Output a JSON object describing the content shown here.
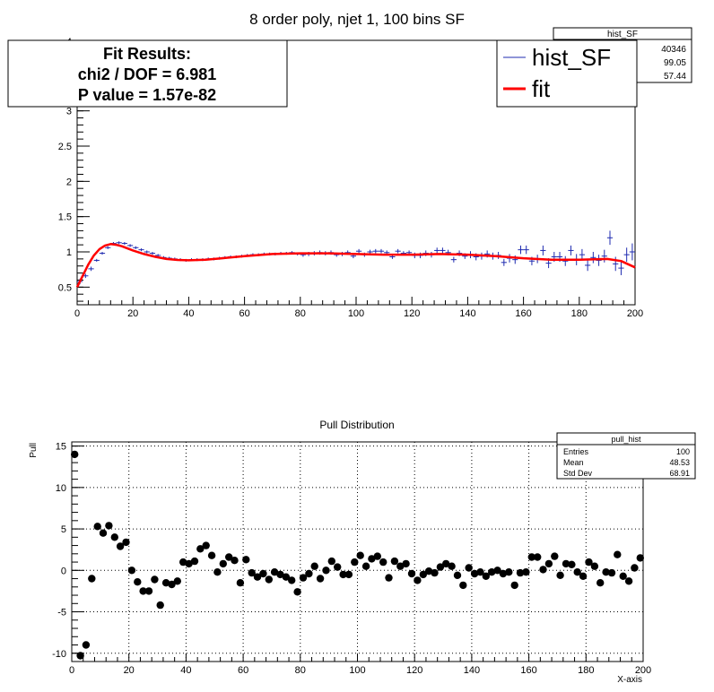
{
  "chart_data": [
    {
      "type": "scatter",
      "title": "8 order poly, njet 1, 100 bins SF",
      "xlim": [
        0,
        200
      ],
      "ylim": [
        0.25,
        4.0
      ],
      "x_ticks": [
        "0",
        "20",
        "40",
        "60",
        "80",
        "100",
        "120",
        "140",
        "160",
        "180",
        "200"
      ],
      "x_tick_values": [
        0,
        20,
        40,
        60,
        80,
        100,
        120,
        140,
        160,
        180,
        200
      ],
      "y_ticks": [
        "0.5",
        "1",
        "1.5",
        "2",
        "2.5",
        "3"
      ],
      "y_tick_values": [
        0.5,
        1,
        1.5,
        2,
        2.5,
        3
      ],
      "y_tick_partial": "4",
      "grid": false,
      "fit_box": {
        "heading": "Fit Results:",
        "chi2_line": "chi2 / DOF = 6.981",
        "pvalue_line": "P value = 1.57e-82"
      },
      "legend": {
        "placement": "top-right",
        "entries": [
          {
            "label": "hist_SF",
            "color": "#1f2bb0"
          },
          {
            "label": "fit",
            "color": "#ff0000"
          }
        ]
      },
      "stats_box": {
        "title": "hist_SF",
        "values": [
          "40346",
          "99.05",
          "57.44"
        ]
      },
      "series": [
        {
          "name": "hist_SF",
          "color": "#1f2bb0",
          "kind": "errorbar",
          "x": [
            1,
            3,
            5,
            7,
            9,
            11,
            13,
            15,
            17,
            19,
            21,
            23,
            25,
            27,
            29,
            31,
            33,
            35,
            37,
            39,
            41,
            43,
            45,
            47,
            49,
            51,
            53,
            55,
            57,
            59,
            61,
            63,
            65,
            67,
            69,
            71,
            73,
            75,
            77,
            79,
            81,
            83,
            85,
            87,
            89,
            91,
            93,
            95,
            97,
            99,
            101,
            103,
            105,
            107,
            109,
            111,
            113,
            115,
            117,
            119,
            121,
            123,
            125,
            127,
            129,
            131,
            133,
            135,
            137,
            139,
            141,
            143,
            145,
            147,
            149,
            151,
            153,
            155,
            157,
            159,
            161,
            163,
            165,
            167,
            169,
            171,
            173,
            175,
            177,
            179,
            181,
            183,
            185,
            187,
            189,
            191,
            193,
            195,
            197,
            199
          ],
          "y": [
            0.58,
            0.66,
            0.76,
            0.88,
            0.98,
            1.06,
            1.12,
            1.13,
            1.12,
            1.09,
            1.06,
            1.03,
            1.0,
            0.98,
            0.95,
            0.92,
            0.91,
            0.9,
            0.89,
            0.88,
            0.89,
            0.89,
            0.89,
            0.9,
            0.9,
            0.91,
            0.92,
            0.93,
            0.93,
            0.94,
            0.95,
            0.96,
            0.96,
            0.97,
            0.97,
            0.97,
            0.98,
            0.98,
            0.99,
            0.97,
            0.96,
            0.97,
            0.98,
            0.99,
            0.98,
            0.99,
            0.96,
            0.97,
            0.99,
            0.94,
            1.01,
            0.96,
            1.0,
            1.01,
            1.01,
            0.99,
            0.93,
            1.01,
            0.98,
            0.99,
            0.95,
            0.95,
            0.98,
            0.96,
            1.02,
            1.02,
            0.99,
            0.89,
            0.98,
            0.94,
            0.96,
            0.93,
            0.94,
            0.97,
            0.94,
            0.95,
            0.85,
            0.91,
            0.89,
            1.03,
            1.03,
            0.87,
            0.9,
            1.02,
            0.84,
            0.93,
            0.93,
            0.87,
            1.02,
            0.89,
            0.96,
            0.81,
            0.92,
            0.88,
            0.94,
            1.2,
            0.83,
            0.77,
            0.96,
            1.0
          ],
          "yerr": [
            0.04,
            0.03,
            0.03,
            0.02,
            0.02,
            0.02,
            0.02,
            0.02,
            0.02,
            0.02,
            0.02,
            0.02,
            0.02,
            0.02,
            0.02,
            0.02,
            0.02,
            0.02,
            0.02,
            0.02,
            0.02,
            0.02,
            0.02,
            0.02,
            0.02,
            0.02,
            0.02,
            0.02,
            0.02,
            0.02,
            0.02,
            0.02,
            0.02,
            0.02,
            0.02,
            0.02,
            0.02,
            0.02,
            0.02,
            0.02,
            0.03,
            0.03,
            0.03,
            0.03,
            0.03,
            0.03,
            0.03,
            0.03,
            0.03,
            0.03,
            0.03,
            0.03,
            0.03,
            0.03,
            0.03,
            0.03,
            0.03,
            0.03,
            0.03,
            0.03,
            0.04,
            0.04,
            0.04,
            0.04,
            0.04,
            0.04,
            0.04,
            0.04,
            0.04,
            0.04,
            0.05,
            0.05,
            0.05,
            0.05,
            0.05,
            0.05,
            0.05,
            0.06,
            0.06,
            0.06,
            0.06,
            0.06,
            0.06,
            0.07,
            0.07,
            0.07,
            0.07,
            0.07,
            0.07,
            0.08,
            0.08,
            0.08,
            0.08,
            0.08,
            0.09,
            0.1,
            0.1,
            0.1,
            0.1,
            0.12
          ]
        },
        {
          "name": "fit",
          "color": "#ff0000",
          "kind": "line",
          "x": [
            0,
            2,
            4,
            6,
            8,
            10,
            12,
            14,
            16,
            18,
            20,
            24,
            28,
            32,
            36,
            40,
            46,
            52,
            60,
            70,
            80,
            90,
            100,
            110,
            120,
            130,
            140,
            150,
            160,
            170,
            180,
            190,
            195,
            200
          ],
          "y": [
            0.5,
            0.66,
            0.82,
            0.95,
            1.04,
            1.09,
            1.11,
            1.1,
            1.08,
            1.05,
            1.02,
            0.97,
            0.93,
            0.9,
            0.885,
            0.88,
            0.89,
            0.91,
            0.94,
            0.97,
            0.98,
            0.98,
            0.97,
            0.96,
            0.96,
            0.97,
            0.96,
            0.94,
            0.91,
            0.89,
            0.89,
            0.9,
            0.87,
            0.78
          ]
        }
      ]
    },
    {
      "type": "scatter",
      "title": "Pull Distribution",
      "xlabel": "X-axis",
      "ylabel": "Pull",
      "xlim": [
        0,
        200
      ],
      "ylim": [
        -11,
        15.5
      ],
      "x_ticks": [
        "0",
        "20",
        "40",
        "60",
        "80",
        "100",
        "120",
        "140",
        "160",
        "180",
        "200"
      ],
      "x_tick_values": [
        0,
        20,
        40,
        60,
        80,
        100,
        120,
        140,
        160,
        180,
        200
      ],
      "y_ticks": [
        "-10",
        "-5",
        "0",
        "5",
        "10",
        "15"
      ],
      "y_tick_values": [
        -10,
        -5,
        0,
        5,
        10,
        15
      ],
      "grid": true,
      "stats_box": {
        "title": "pull_hist",
        "rows": [
          {
            "label": "Entries",
            "value": "100"
          },
          {
            "label": "Mean",
            "value": "48.53"
          },
          {
            "label": "Std Dev",
            "value": "68.91"
          }
        ]
      },
      "series": [
        {
          "name": "Pull",
          "color": "#000000",
          "x": [
            1,
            3,
            5,
            7,
            9,
            11,
            13,
            15,
            17,
            19,
            21,
            23,
            25,
            27,
            29,
            31,
            33,
            35,
            37,
            39,
            41,
            43,
            45,
            47,
            49,
            51,
            53,
            55,
            57,
            59,
            61,
            63,
            65,
            67,
            69,
            71,
            73,
            75,
            77,
            79,
            81,
            83,
            85,
            87,
            89,
            91,
            93,
            95,
            97,
            99,
            101,
            103,
            105,
            107,
            109,
            111,
            113,
            115,
            117,
            119,
            121,
            123,
            125,
            127,
            129,
            131,
            133,
            135,
            137,
            139,
            141,
            143,
            145,
            147,
            149,
            151,
            153,
            155,
            157,
            159,
            161,
            163,
            165,
            167,
            169,
            171,
            173,
            175,
            177,
            179,
            181,
            183,
            185,
            187,
            189,
            191,
            193,
            195,
            197,
            199
          ],
          "y": [
            14.0,
            -10.3,
            -9.0,
            -1.0,
            5.3,
            4.5,
            5.4,
            4.0,
            2.9,
            3.4,
            0.0,
            -1.4,
            -2.5,
            -2.5,
            -1.1,
            -4.2,
            -1.5,
            -1.7,
            -1.3,
            1.0,
            0.8,
            1.1,
            2.6,
            3.0,
            1.8,
            -0.2,
            0.8,
            1.6,
            1.2,
            -1.5,
            1.3,
            -0.3,
            -0.8,
            -0.4,
            -1.1,
            -0.2,
            -0.5,
            -0.8,
            -1.2,
            -2.6,
            -0.9,
            -0.4,
            0.5,
            -1.0,
            0.0,
            1.1,
            0.4,
            -0.5,
            -0.5,
            1.0,
            1.8,
            0.5,
            1.4,
            1.7,
            1.0,
            -0.9,
            1.1,
            0.5,
            0.8,
            -0.4,
            -1.2,
            -0.5,
            -0.1,
            -0.3,
            0.4,
            0.8,
            0.5,
            -0.6,
            -1.8,
            0.3,
            -0.4,
            -0.2,
            -0.7,
            -0.2,
            0.0,
            -0.4,
            -0.2,
            -1.8,
            -0.3,
            -0.2,
            1.6,
            1.6,
            0.1,
            0.8,
            1.7,
            -0.6,
            0.8,
            0.7,
            -0.2,
            -0.7,
            1.0,
            0.5,
            -1.5,
            -0.2,
            -0.3,
            1.9,
            -0.7,
            -1.3,
            0.3,
            1.5
          ]
        }
      ]
    }
  ]
}
